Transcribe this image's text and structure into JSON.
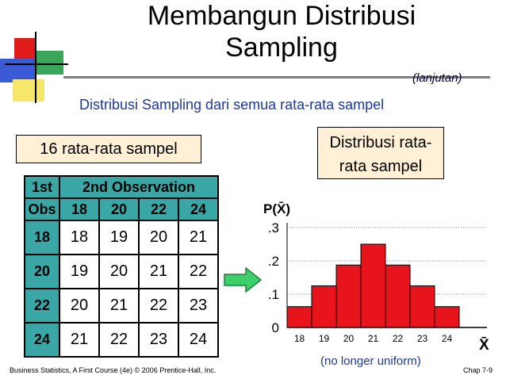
{
  "title_line1": "Membangun Distribusi",
  "title_line2": "Sampling",
  "continued": "(lanjutan)",
  "subtitle": "Distribusi Sampling dari semua rata-rata sampel",
  "left_box": "16 rata-rata sampel",
  "right_box_line1": "Distribusi rata-",
  "right_box_line2": "rata sampel",
  "table": {
    "corner_top": "1st",
    "corner_bottom": "Obs",
    "group_header": "2nd Observation",
    "columns": [
      "18",
      "20",
      "22",
      "24"
    ],
    "rows": [
      {
        "label": "18",
        "values": [
          "18",
          "19",
          "20",
          "21"
        ]
      },
      {
        "label": "20",
        "values": [
          "19",
          "20",
          "21",
          "22"
        ]
      },
      {
        "label": "22",
        "values": [
          "20",
          "21",
          "22",
          "23"
        ]
      },
      {
        "label": "24",
        "values": [
          "21",
          "22",
          "23",
          "24"
        ]
      }
    ]
  },
  "caption": "(no longer uniform)",
  "footer_left": "Business Statistics, A First Course (4e) © 2006 Prentice-Hall, Inc.",
  "footer_right": "Chap 7-9",
  "colors": {
    "table_header": "#3aa6a6",
    "bar": "#e8141c",
    "box_fill": "#fff0d6",
    "subtitle": "#1f3a93"
  },
  "chart_data": {
    "type": "bar",
    "ylabel": "P(X̄)",
    "xlabel": "X̄",
    "categories": [
      "18",
      "19",
      "20",
      "21",
      "22",
      "23",
      "24"
    ],
    "values": [
      0.0625,
      0.125,
      0.1875,
      0.25,
      0.1875,
      0.125,
      0.0625
    ],
    "y_ticks": [
      ".3",
      ".2",
      ".1",
      "0"
    ],
    "ylim": [
      0,
      0.3
    ],
    "grid": "horizontal dotted"
  }
}
